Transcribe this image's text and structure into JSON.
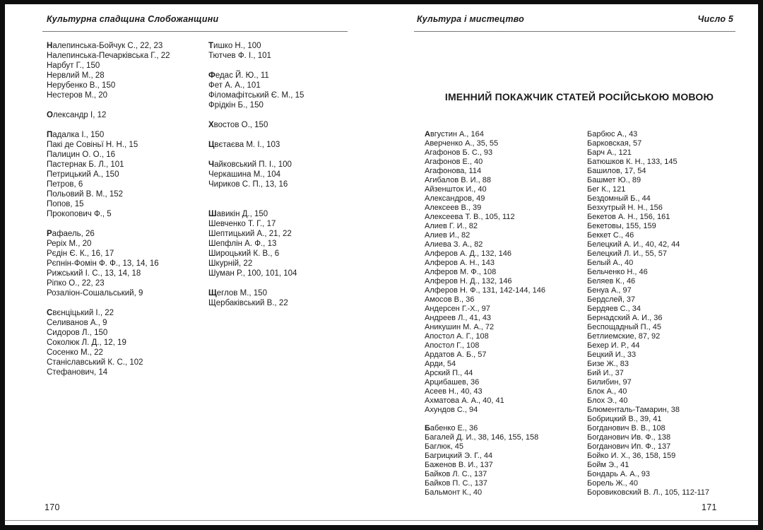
{
  "colors": {
    "page_bg": "#ffffff",
    "frame": "#0e0e0e",
    "text": "#1c1c1c",
    "rule": "#777777"
  },
  "left_page": {
    "header": "Культурна спадщина Слобожанщини",
    "page_number": "170",
    "columns": [
      {
        "groups": [
          {
            "new_letter": true,
            "entries": [
              "Налепинська-Бойчук С., 22, 23",
              "Налепинська-Печарківська Г., 22",
              "Нарбут Г., 150",
              "Нервлий М., 28",
              "Нерубенко В., 150",
              "Нестеров М., 20"
            ]
          },
          {
            "new_letter": true,
            "entries": [
              "Олександр І, 12"
            ]
          },
          {
            "new_letter": true,
            "entries": [
              "Падалка І., 150",
              "Пакі де Совіньї Н. Н., 15",
              "Палицин О. О., 16",
              "Пастернак Б. Л., 101",
              "Петрицький А., 150",
              "Петров, 6",
              "Польовий В. М., 152",
              "Попов, 15",
              "Прокопович Ф., 5"
            ]
          },
          {
            "new_letter": true,
            "entries": [
              "Рафаель, 26",
              "Реріх М., 20",
              "Рєдін Є. К., 16, 17",
              "Рєпнін-Фомін Ф. Ф., 13, 14, 16",
              "Рижський І. С., 13, 14, 18",
              "Ріпко О., 22, 23",
              "Розаліон-Сошальський, 9"
            ]
          },
          {
            "new_letter": true,
            "entries": [
              "Свєнціцький І., 22",
              "Селиванов А., 9",
              "Сидоров Л., 150",
              "Соколюк Л. Д., 12, 19",
              "Сосенко М., 22",
              "Станіславський К. С., 102",
              "Стефанович, 14"
            ]
          }
        ]
      },
      {
        "groups": [
          {
            "new_letter": true,
            "entries": [
              "Тишко Н., 100",
              "Тютчев Ф. І., 101"
            ]
          },
          {
            "new_letter": true,
            "entries": [
              "Федас Й. Ю., 11",
              "Фет А. А., 101",
              "Філомафітський Є. М., 15",
              "Фрідкін Б., 150"
            ]
          },
          {
            "new_letter": true,
            "entries": [
              "Хвостов О., 150"
            ]
          },
          {
            "new_letter": true,
            "entries": [
              "Цвєтаєва М. І., 103"
            ]
          },
          {
            "new_letter": true,
            "entries": [
              "Чайковський П. І., 100",
              "Черкашина М., 104",
              "Чириков С. П., 13, 16",
              ""
            ]
          },
          {
            "new_letter": true,
            "entries": [
              "Шавикін Д., 150",
              "Шевченко Т. Г., 17",
              "Шептицький А., 21, 22",
              "Шепфлін А. Ф., 13",
              "Широцький К. В., 6",
              "Шкурній, 22",
              "Шуман Р., 100, 101, 104"
            ]
          },
          {
            "new_letter": true,
            "entries": [
              "Щеглов М., 150",
              "Щербаківський В., 22"
            ]
          }
        ]
      }
    ]
  },
  "right_page": {
    "header": "Культура і мистецтво",
    "issue": "Число 5",
    "title": "ІМЕННИЙ ПОКАЖЧИК СТАТЕЙ РОСІЙСЬКОЮ МОВОЮ",
    "page_number": "171",
    "columns": [
      {
        "groups": [
          {
            "new_letter": true,
            "entries": [
              "Августин А., 164",
              "Аверченко А., 35, 55",
              "Агафонов Б. С., 93",
              "Агафонов Е., 40",
              "Агафонова, 114",
              "Агибалов В. И., 88",
              "Айзеншток И., 40",
              "Александров, 49",
              "Алексеев В., 39",
              "Алексеева Т. В., 105, 112",
              "Алиев Г. И., 82",
              "Алиев И., 82",
              "Алиева З. А., 82",
              "Алферов А. Д., 132, 146",
              "Алферов А. Н., 143",
              "Алферов М. Ф., 108",
              "Алферов Н. Д., 132, 146",
              "Алферов Н. Ф., 131, 142-144, 146",
              "Амосов В., 36",
              "Андерсен Г.-Х., 97",
              "Андреев Л., 41, 43",
              "Аникушин М. А., 72",
              "Апостол А. Г., 108",
              "Апостол Г., 108",
              "Ардатов А. Б., 57",
              "Арди, 54",
              "Арский П., 44",
              "Арцибашев, 36",
              "Асеев Н., 40, 43",
              "Ахматова А. А., 40, 41",
              "Ахундов С., 94"
            ]
          },
          {
            "new_letter": true,
            "entries": [
              "Бабенко Е., 36",
              "Багалей Д. И., 38, 146, 155, 158",
              "Баглюк, 45",
              "Багрицкий Э. Г., 44",
              "Баженов В. И., 137",
              "Байков Л. С., 137",
              "Байков П. С., 137",
              "Бальмонт К., 40"
            ]
          }
        ]
      },
      {
        "groups": [
          {
            "new_letter": false,
            "entries": [
              "Барбюс А., 43",
              "Барковская, 57",
              "Барч А., 121",
              "Батюшков К. Н., 133, 145",
              "Башилов, 17, 54",
              "Башмет Ю., 89",
              "Бег К., 121",
              "Бездомный Б., 44",
              "Безхутрый Н. Н., 156",
              "Бекетов А. Н., 156, 161",
              "Бекетовы, 155, 159",
              "Беккет С., 46",
              "Белецкий А. И., 40, 42, 44",
              "Белецкий Л. И., 55, 57",
              "Белый А., 40",
              "Бельченко Н., 46",
              "Беляев К., 46",
              "Бенуа А., 97",
              "Бердслей, 37",
              "Бердяев С., 34",
              "Бернадский А. И., 36",
              "Беспощадный П., 45",
              "Бетлиемские, 87, 92",
              "Бехер И. Р., 44",
              "Бецкий И., 33",
              "Бизе Ж., 83",
              "Бий И., 37",
              "Билибин, 97",
              "Блок А., 40",
              "Блох Э., 40",
              "Блюменталь-Тамарин, 38",
              "Бобрицкий В., 39, 41",
              "Богданович В. В., 108",
              "Богданович Ив. Ф., 138",
              "Богданович Ип. Ф., 137",
              "Бойко И. Х., 36, 158, 159",
              "Бойм Э., 41",
              "Бондарь А. А., 93",
              "Борель Ж., 40",
              "Боровиковский В. Л., 105, 112-117"
            ]
          }
        ]
      }
    ]
  }
}
